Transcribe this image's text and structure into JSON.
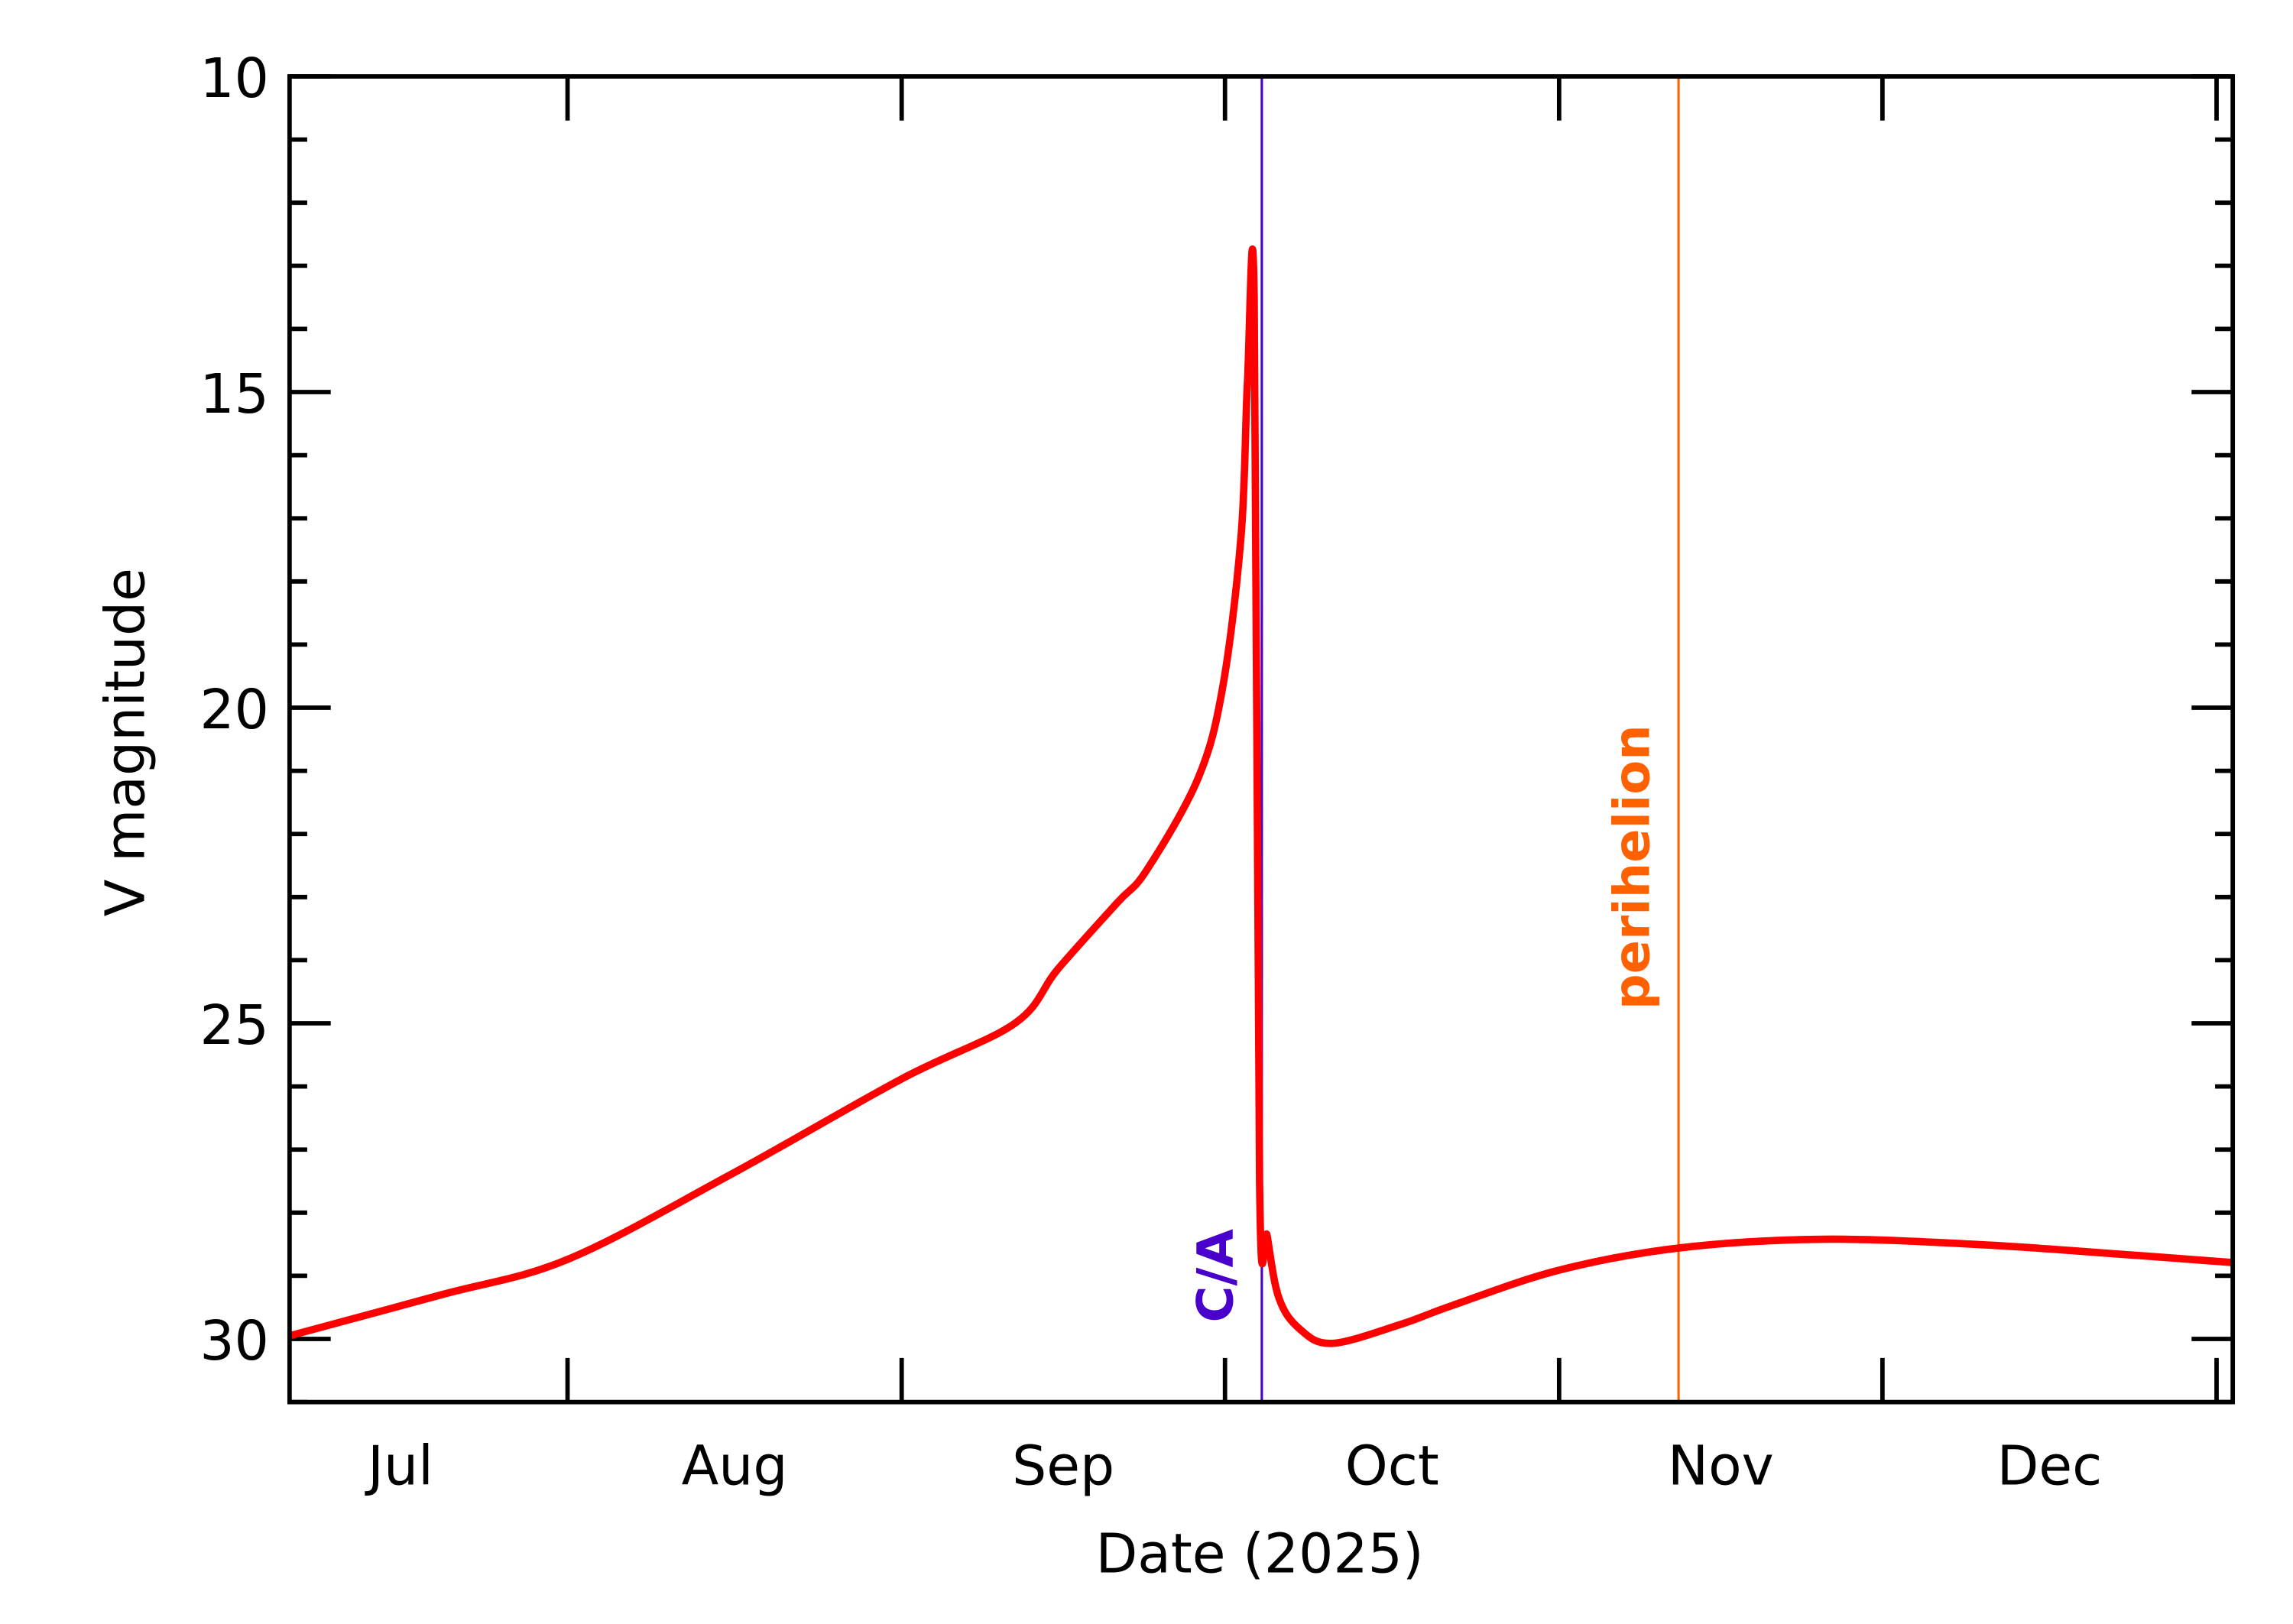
{
  "chart_data": {
    "type": "line",
    "title": "",
    "xlabel": "Date (2025)",
    "ylabel": "V magnitude",
    "xlim": [
      "2025-07-06T05:00",
      "2026-01-02T12:00"
    ],
    "ylim": [
      31,
      10
    ],
    "y_inverted": true,
    "grid": false,
    "y_major_ticks": [
      10,
      15,
      20,
      25,
      30
    ],
    "y_tick_labels": [
      "10",
      "15",
      "20",
      "25",
      "30"
    ],
    "y_minor_step": 1,
    "x_major_ticks": [
      "2025-08-01",
      "2025-09-01",
      "2025-10-01",
      "2025-11-01",
      "2025-12-01",
      "2026-01-01"
    ],
    "x_tick_labels": [
      {
        "label": "Jul",
        "month": "2025-07"
      },
      {
        "label": "Aug",
        "month": "2025-08"
      },
      {
        "label": "Sep",
        "month": "2025-09"
      },
      {
        "label": "Oct",
        "month": "2025-10"
      },
      {
        "label": "Nov",
        "month": "2025-11"
      },
      {
        "label": "Dec",
        "month": "2025-12"
      }
    ],
    "series": [
      {
        "color": "#ff0000",
        "points": [
          [
            "2025-07-06T05:00",
            29.95
          ],
          [
            "2025-07-20T07:00",
            29.3
          ],
          [
            "2025-08-01T00:00",
            28.74
          ],
          [
            "2025-08-16T02:00",
            27.4
          ],
          [
            "2025-09-01T00:00",
            25.88
          ],
          [
            "2025-09-11T12:00",
            25.0
          ],
          [
            "2025-09-15T12:00",
            24.14
          ],
          [
            "2025-09-21T00:00",
            23.09
          ],
          [
            "2025-09-23T17:00",
            22.58
          ],
          [
            "2025-09-28T12:00",
            21.12
          ],
          [
            "2025-09-30T19:00",
            19.67
          ],
          [
            "2025-10-02T12:00",
            17.26
          ],
          [
            "2025-10-03T02:00",
            14.84
          ],
          [
            "2025-10-03T17:00",
            13.51
          ],
          [
            "2025-10-04T05:00",
            27.53
          ],
          [
            "2025-10-04T22:00",
            28.37
          ],
          [
            "2025-10-06T00:00",
            29.35
          ],
          [
            "2025-10-07T22:00",
            29.84
          ],
          [
            "2025-10-10T22:00",
            30.07
          ],
          [
            "2025-10-17T07:00",
            29.77
          ],
          [
            "2025-10-22T02:00",
            29.47
          ],
          [
            "2025-11-01T00:00",
            28.91
          ],
          [
            "2025-11-12T02:00",
            28.56
          ],
          [
            "2025-11-25T12:00",
            28.42
          ],
          [
            "2025-12-10T12:00",
            28.51
          ],
          [
            "2025-12-24T02:00",
            28.67
          ],
          [
            "2026-01-02T12:00",
            28.79
          ]
        ]
      }
    ],
    "annotations": [
      {
        "label": "C/A",
        "date": "2025-10-04T10:00",
        "color": "#4a00cc"
      },
      {
        "label": "perihelion",
        "date": "2025-11-12T02:00",
        "color": "#ff6000"
      }
    ]
  }
}
